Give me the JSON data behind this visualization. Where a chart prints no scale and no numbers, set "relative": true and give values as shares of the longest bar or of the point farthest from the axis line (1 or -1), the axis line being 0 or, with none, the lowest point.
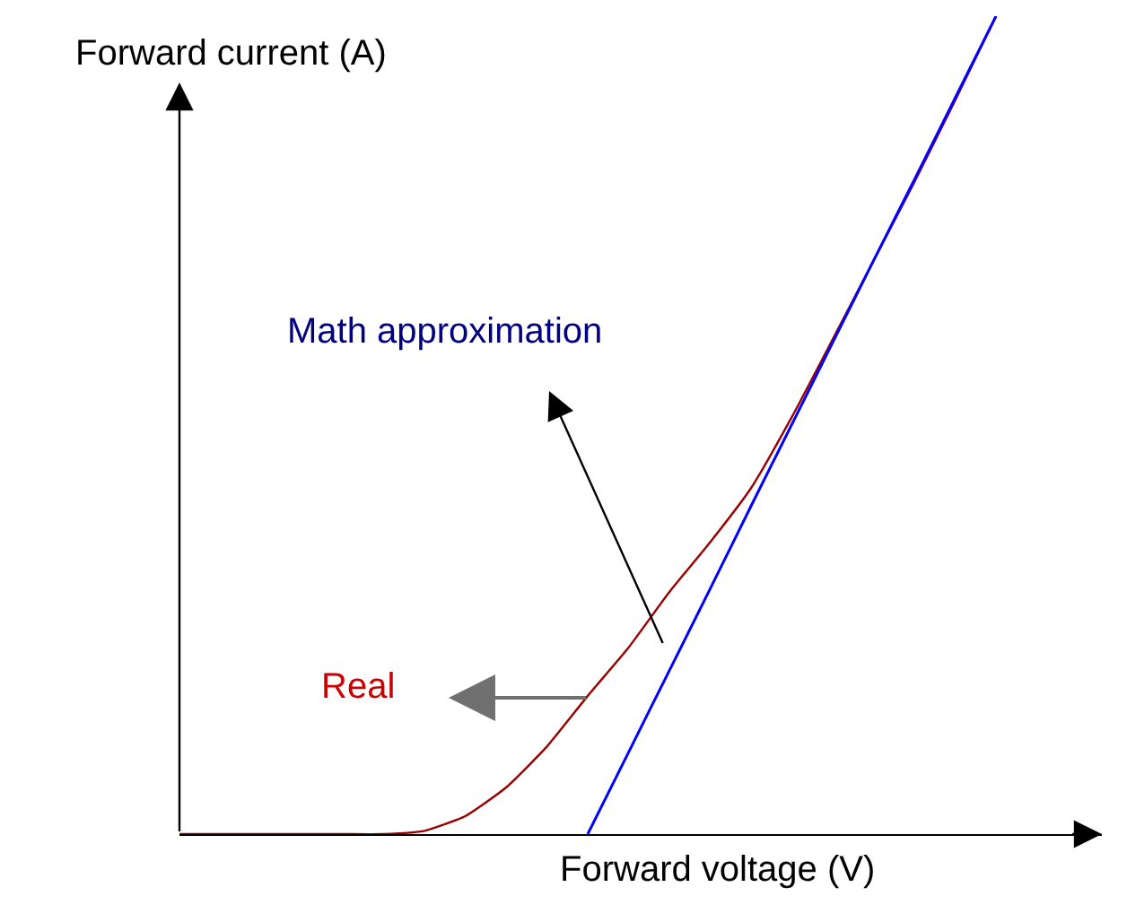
{
  "chart_data": {
    "type": "line",
    "relative": true,
    "xlabel": "Forward voltage (V)",
    "ylabel": "Forward current (A)",
    "annotations": [
      "Math approximation",
      "Real"
    ],
    "categories": [
      null,
      null,
      null,
      null,
      null,
      null,
      null,
      null,
      null,
      null,
      null,
      null,
      null,
      null,
      null,
      null,
      null,
      null,
      null,
      null,
      null
    ],
    "series": [
      {
        "color": "#990000",
        "values": [
          0,
          0,
          0,
          0,
          0,
          0,
          0.004,
          0.022,
          0.057,
          0.107,
          0.169,
          0.228,
          0.296,
          0.357,
          0.423,
          0.51,
          0.605,
          0.701,
          0.797,
          0.897,
          1
        ]
      },
      {
        "color": "#0000ff",
        "values": [
          null,
          null,
          null,
          null,
          null,
          null,
          null,
          null,
          null,
          null,
          0,
          0.1,
          0.2,
          0.3,
          0.401,
          0.501,
          0.601,
          0.701,
          0.8,
          0.9,
          1
        ]
      }
    ],
    "legend": false,
    "marker": "none",
    "line_style": "solid"
  }
}
